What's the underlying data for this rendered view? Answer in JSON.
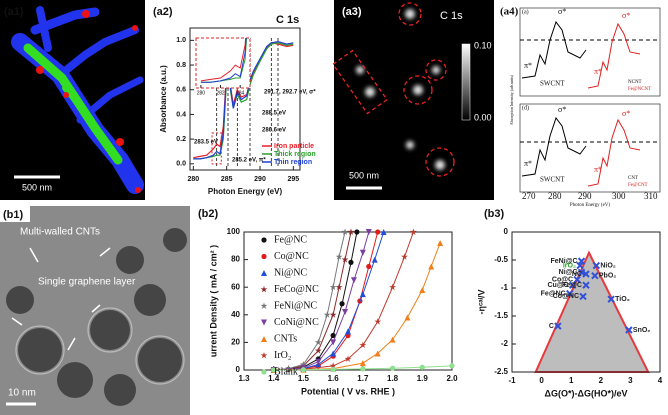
{
  "panels": {
    "a1": {
      "label": "(a1)",
      "scale_bar": "500 nm"
    },
    "a3": {
      "label": "(a3)",
      "title": "C 1s",
      "colorbar_ticks": [
        "0.10",
        "0.00"
      ],
      "scale_bar": "500 nm"
    },
    "a4": {
      "label": "(a4)",
      "top": {
        "label": "(a)",
        "sample": "SWCNT",
        "legend": [
          "NCNT",
          "Fe@NCNT"
        ]
      },
      "bottom": {
        "label": "(d)",
        "sample": "SWCNT",
        "legend": [
          "CNT",
          "Fe@CNT"
        ]
      },
      "sigma": "σ*",
      "pi": "π*",
      "y_label": "Absorption Intensity (arb.units)",
      "x_label": "Photon Energy (eV)",
      "xticks": [
        "270",
        "280",
        "290",
        "300",
        "310"
      ]
    },
    "b1": {
      "label": "(b1)",
      "annotations": [
        "Multi-walled CNTs",
        "Single graphene layer"
      ],
      "scale_bar": "10 nm"
    }
  },
  "chart_data": [
    {
      "type": "line",
      "label": "(a2)",
      "title": "C 1s",
      "x_label": "Photon Energy (eV)",
      "y_label": "Absorbance (a.u.)",
      "x": [
        280,
        281,
        282,
        283,
        283.5,
        284,
        284.5,
        285,
        285.2,
        285.6,
        286,
        286.6,
        287.2,
        288,
        288.5,
        289,
        290,
        291,
        291.7,
        292.7,
        294,
        295
      ],
      "series": [
        {
          "name": "Iron particle",
          "color": "#e8202a",
          "values": [
            0.05,
            0.06,
            0.07,
            0.12,
            0.16,
            0.14,
            0.3,
            0.78,
            0.83,
            0.62,
            0.48,
            0.6,
            0.54,
            0.56,
            0.66,
            0.74,
            0.84,
            0.94,
            0.98,
            0.97,
            0.95,
            0.96
          ]
        },
        {
          "name": "Thick region",
          "color": "#2ca02c",
          "values": [
            0.04,
            0.04,
            0.05,
            0.06,
            0.07,
            0.07,
            0.2,
            0.7,
            0.76,
            0.58,
            0.45,
            0.56,
            0.5,
            0.52,
            0.64,
            0.72,
            0.83,
            0.93,
            0.97,
            0.98,
            0.96,
            0.97
          ]
        },
        {
          "name": "Thin region",
          "color": "#1f3fd0",
          "values": [
            0.04,
            0.04,
            0.05,
            0.07,
            0.1,
            0.08,
            0.25,
            0.75,
            0.8,
            0.6,
            0.45,
            0.58,
            0.52,
            0.55,
            0.68,
            0.75,
            0.85,
            0.95,
            0.98,
            0.99,
            0.97,
            0.98
          ]
        }
      ],
      "xlim": [
        279.5,
        296
      ],
      "xticks": [
        280,
        285,
        290,
        295
      ],
      "ylim": [
        -0.05,
        1.1
      ],
      "yticks": [
        {
          "value": 0,
          "label": "0.0"
        },
        0.2,
        0.4,
        0.6,
        0.8,
        {
          "value": 1,
          "label": "1.0"
        }
      ],
      "peak_lines": [
        283.5,
        285.2,
        286.6,
        288.5,
        291.7,
        292.7
      ],
      "annotations": [
        "283.5 eV",
        "285.2 eV, π*",
        "286.6 eV",
        "288.5 eV",
        "291.7, 292.7 eV, σ*"
      ],
      "inset": {
        "xlim": [
          279.5,
          285
        ],
        "ylim": [
          0,
          0.35
        ],
        "xticks": [
          280,
          282,
          284
        ]
      }
    },
    {
      "type": "line",
      "label": "(b2)",
      "x_label": "Potential ( V vs. RHE )",
      "y_label": "urrent Density ( mA / cm² )",
      "series": [
        {
          "name": "Fe@NC",
          "color": "#111111",
          "marker": "circle",
          "x": [
            1.4,
            1.45,
            1.5,
            1.55,
            1.6,
            1.63,
            1.66,
            1.68
          ],
          "values": [
            0,
            0.5,
            2,
            8,
            25,
            48,
            78,
            100
          ]
        },
        {
          "name": "Co@NC",
          "color": "#e31a1c",
          "marker": "circle",
          "x": [
            1.4,
            1.5,
            1.55,
            1.6,
            1.65,
            1.69,
            1.72,
            1.75
          ],
          "values": [
            0,
            1,
            3,
            10,
            25,
            50,
            75,
            100
          ]
        },
        {
          "name": "Ni@NC",
          "color": "#1f4fd8",
          "marker": "triangle",
          "x": [
            1.4,
            1.5,
            1.55,
            1.6,
            1.65,
            1.7,
            1.74,
            1.77
          ],
          "values": [
            0,
            1,
            4,
            12,
            28,
            55,
            80,
            100
          ]
        },
        {
          "name": "FeCo@NC",
          "color": "#8b2a2a",
          "marker": "star",
          "x": [
            1.4,
            1.45,
            1.5,
            1.55,
            1.6,
            1.62,
            1.64,
            1.66
          ],
          "values": [
            0,
            0.8,
            3,
            14,
            40,
            60,
            80,
            100
          ]
        },
        {
          "name": "FeNi@NC",
          "color": "#777777",
          "marker": "star",
          "x": [
            1.4,
            1.45,
            1.5,
            1.55,
            1.58,
            1.6,
            1.62,
            1.64
          ],
          "values": [
            0,
            1,
            4,
            20,
            40,
            60,
            82,
            100
          ]
        },
        {
          "name": "CoNi@NC",
          "color": "#7b3fa0",
          "marker": "triangle-down",
          "x": [
            1.4,
            1.5,
            1.55,
            1.6,
            1.64,
            1.67,
            1.7,
            1.72
          ],
          "values": [
            0,
            1.5,
            6,
            20,
            42,
            65,
            85,
            100
          ]
        },
        {
          "name": "CNTs",
          "color": "#f07f1a",
          "marker": "triangle",
          "x": [
            1.4,
            1.5,
            1.6,
            1.7,
            1.75,
            1.8,
            1.85,
            1.9,
            1.93,
            1.96
          ],
          "values": [
            0,
            0.3,
            1,
            5,
            12,
            22,
            38,
            58,
            75,
            92
          ]
        },
        {
          "name": "IrO₂",
          "color": "#c0392b",
          "marker": "star",
          "x": [
            1.4,
            1.5,
            1.6,
            1.65,
            1.7,
            1.75,
            1.8,
            1.84,
            1.87
          ],
          "values": [
            0,
            0.5,
            3,
            8,
            18,
            35,
            60,
            82,
            100
          ]
        },
        {
          "name": "Blank",
          "color": "#8fe08f",
          "marker": "circle",
          "x": [
            1.4,
            1.5,
            1.6,
            1.7,
            1.8,
            1.9,
            2.0
          ],
          "values": [
            0,
            0.2,
            0.4,
            0.8,
            1.3,
            2,
            3
          ]
        }
      ],
      "xlim": [
        1.3,
        2.0
      ],
      "xticks": [
        1.3,
        1.4,
        1.5,
        1.6,
        1.7,
        1.8,
        1.9,
        {
          "value": 2,
          "label": "2.0"
        }
      ],
      "ylim": [
        0,
        100
      ],
      "yticks": [
        0,
        20,
        40,
        60,
        80,
        100
      ]
    },
    {
      "type": "scatter",
      "label": "(b3)",
      "x_label": "ΔG(O*)-ΔG(HO*)/eV",
      "y_label": "-ηᶜᵃˡ/V",
      "labels": [
        "FeNi@C",
        "IrO₂",
        "Ni@C",
        "Co@C",
        "Cu@C",
        "Fe@C",
        "NC",
        "NiO₂",
        "PbO₂",
        "Fe@NC",
        "Co@NC",
        "TiO₂",
        "SnO₂",
        "C"
      ],
      "x": [
        1.35,
        1.3,
        1.35,
        1.2,
        1.05,
        1.5,
        1.5,
        1.85,
        1.8,
        0.95,
        1.4,
        2.35,
        2.95,
        0.55
      ],
      "values": [
        -0.52,
        -0.6,
        -0.72,
        -0.85,
        -0.95,
        -0.95,
        -0.75,
        -0.6,
        -0.78,
        -1.1,
        -1.15,
        -1.2,
        -1.75,
        -1.68
      ],
      "color": "#3050d8",
      "label_colors": [
        "#222222",
        "#2ca02c",
        "#222222",
        "#222222",
        "#222222",
        "#222222",
        "#222222",
        "#222222",
        "#222222",
        "#222222",
        "#222222",
        "#222222",
        "#222222",
        "#222222"
      ],
      "volcano": {
        "x": [
          -0.2,
          1.6,
          3.6
        ],
        "values": [
          -2.5,
          -0.37,
          -2.5
        ],
        "color": "#e8383d"
      },
      "xlim": [
        -1,
        4
      ],
      "xticks": [
        -1,
        0,
        1,
        2,
        3,
        4
      ],
      "ylim": [
        -2.5,
        0
      ],
      "yticks": [
        0,
        -0.5,
        -1,
        -1.5,
        -2,
        -2.5
      ]
    }
  ]
}
